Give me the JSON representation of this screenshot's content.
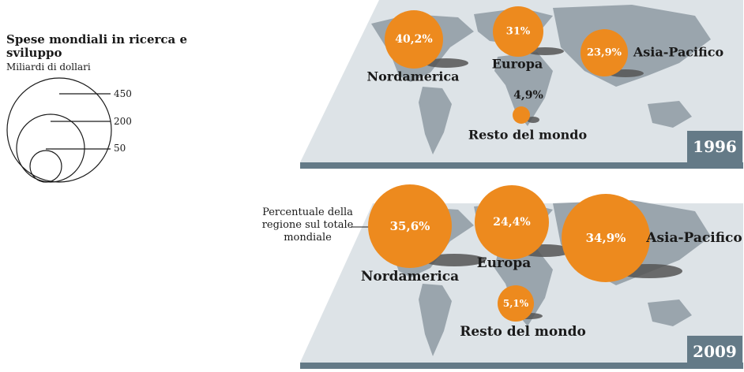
{
  "legend": {
    "title": "Spese mondiali in ricerca e sviluppo",
    "subtitle": "Miliardi di dollari",
    "sizes": [
      "450",
      "200",
      "50"
    ]
  },
  "callout": "Percentuale della regione sul totale mondiale",
  "colors": {
    "bubble": "#ED8A1E",
    "map_bg": "#DDE3E7",
    "land": "#9AA5AD",
    "band": "#647A87",
    "shadow": "#555555"
  },
  "panels": [
    {
      "year": "1996",
      "regions": [
        {
          "name": "Nordamerica",
          "share_label": "40,2%",
          "share": 40.2
        },
        {
          "name": "Europa",
          "share_label": "31%",
          "share": 31.0
        },
        {
          "name": "Asia-Pacifico",
          "share_label": "23,9%",
          "share": 23.9
        },
        {
          "name": "Resto del mondo",
          "share_label": "4,9%",
          "share": 4.9
        }
      ]
    },
    {
      "year": "2009",
      "regions": [
        {
          "name": "Nordamerica",
          "share_label": "35,6%",
          "share": 35.6
        },
        {
          "name": "Europa",
          "share_label": "24,4%",
          "share": 24.4
        },
        {
          "name": "Asia-Pacifico",
          "share_label": "34,9%",
          "share": 34.9
        },
        {
          "name": "Resto del mondo",
          "share_label": "5,1%",
          "share": 5.1
        }
      ]
    }
  ]
}
